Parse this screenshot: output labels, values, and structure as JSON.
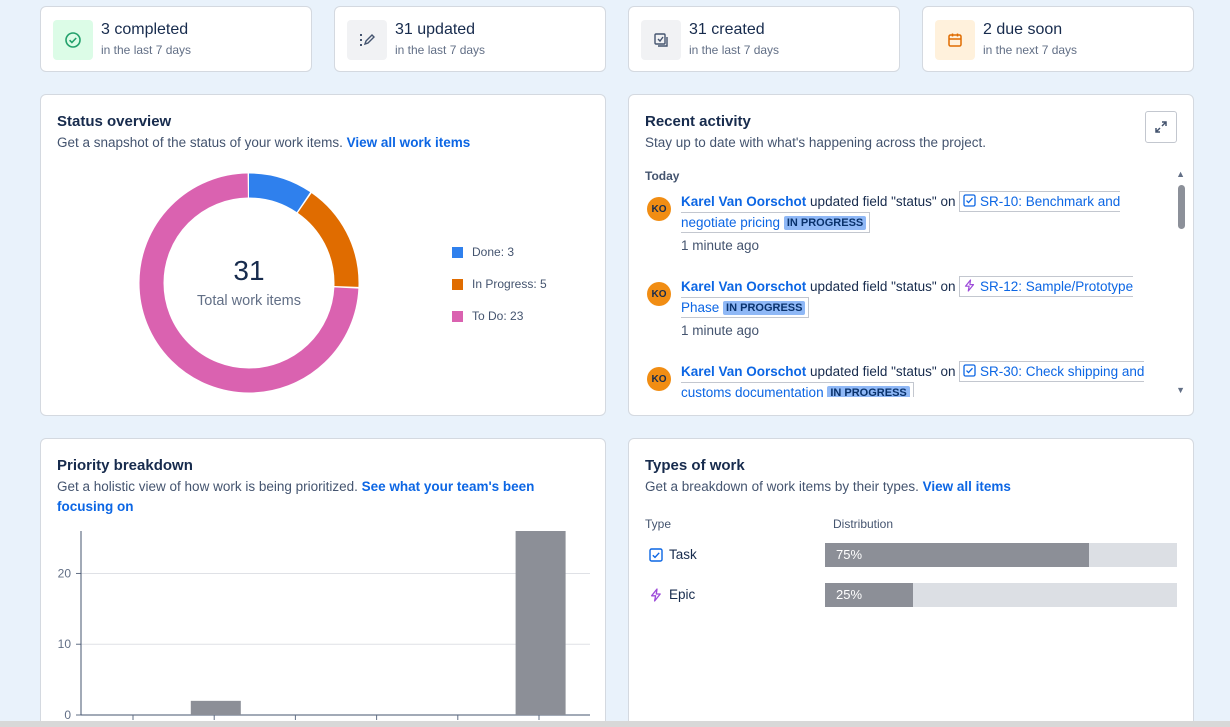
{
  "stats": [
    {
      "title": "3 completed",
      "subtitle": "in the last 7 days",
      "icon": "check-circle-icon",
      "bg": "#dcfce7"
    },
    {
      "title": "31 updated",
      "subtitle": "in the last 7 days",
      "icon": "edit-icon",
      "bg": "#f1f2f4"
    },
    {
      "title": "31 created",
      "subtitle": "in the last 7 days",
      "icon": "create-icon",
      "bg": "#f1f2f4"
    },
    {
      "title": "2 due soon",
      "subtitle": "in the next 7 days",
      "icon": "calendar-icon",
      "bg": "#fff1dc"
    }
  ],
  "status_overview": {
    "title": "Status overview",
    "subtitle": "Get a snapshot of the status of your work items.",
    "link": "View all work items",
    "total": "31",
    "total_label": "Total work items",
    "segments": [
      {
        "label": "Done: 3",
        "value": 3,
        "color": "#2f80ed"
      },
      {
        "label": "In Progress: 5",
        "value": 5,
        "color": "#e06c00"
      },
      {
        "label": "To Do: 23",
        "value": 23,
        "color": "#da62b0"
      }
    ]
  },
  "recent_activity": {
    "title": "Recent activity",
    "subtitle": "Stay up to date with what's happening across the project.",
    "expand_icon": "expand-icon",
    "day": "Today",
    "items": [
      {
        "initials": "KO",
        "user": "Karel Van Oorschot",
        "action": " updated field \"status\" on ",
        "issue_icon": "task-icon",
        "issue": "SR-10: Benchmark and negotiate pricing",
        "status": "IN PROGRESS",
        "time": "1 minute ago"
      },
      {
        "initials": "KO",
        "user": "Karel Van Oorschot",
        "action": " updated field \"status\" on ",
        "issue_icon": "epic-icon",
        "issue": "SR-12: Sample/Prototype Phase",
        "status": "IN PROGRESS",
        "time": "1 minute ago"
      },
      {
        "initials": "KO",
        "user": "Karel Van Oorschot",
        "action": " updated field \"status\" on ",
        "issue_icon": "task-icon",
        "issue": "SR-30: Check shipping and customs documentation",
        "status": "IN PROGRESS",
        "time": ""
      }
    ]
  },
  "priority_breakdown": {
    "title": "Priority breakdown",
    "subtitle": "Get a holistic view of how work is being prioritized.",
    "link": "See what your team's been focusing on"
  },
  "chart_data": {
    "type": "bar",
    "categories": [
      "",
      "",
      "",
      "",
      "",
      ""
    ],
    "values": [
      0,
      2,
      0,
      0,
      0,
      26
    ],
    "ylim": [
      0,
      26
    ],
    "yticks": [
      0,
      10,
      20
    ],
    "color": "#8c8f97",
    "grid": true
  },
  "types_of_work": {
    "title": "Types of work",
    "subtitle": "Get a breakdown of work items by their types.",
    "link": "View all items",
    "col_type": "Type",
    "col_distribution": "Distribution",
    "rows": [
      {
        "name": "Task",
        "icon": "task-icon",
        "percent_label": "75%",
        "percent": 75
      },
      {
        "name": "Epic",
        "icon": "epic-icon",
        "percent_label": "25%",
        "percent": 25
      }
    ]
  }
}
